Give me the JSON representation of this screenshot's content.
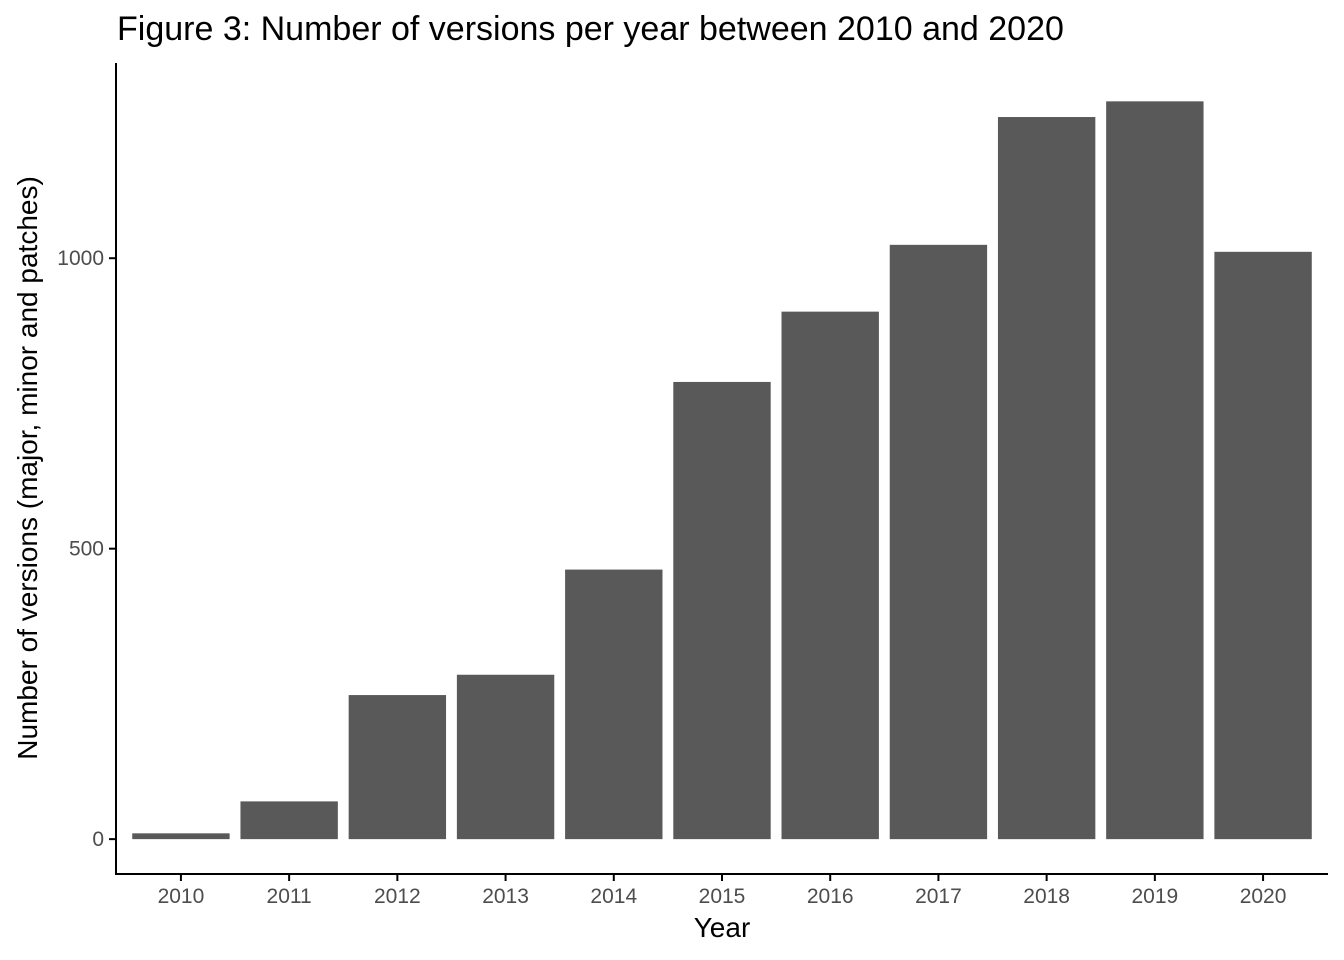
{
  "colors": {
    "bar": "#595959",
    "axis": "#000000",
    "tick_text": "#4d4d4d",
    "background": "#ffffff"
  },
  "chart_data": {
    "type": "bar",
    "title": "Figure 3: Number of versions per year between 2010 and 2020",
    "xlabel": "Year",
    "ylabel": "Number of versions (major, minor and patches)",
    "categories": [
      "2010",
      "2011",
      "2012",
      "2013",
      "2014",
      "2015",
      "2016",
      "2017",
      "2018",
      "2019",
      "2020"
    ],
    "values": [
      10,
      65,
      248,
      283,
      464,
      787,
      908,
      1023,
      1243,
      1270,
      1011
    ],
    "ylim": [
      -60,
      1336
    ],
    "yticks": [
      0,
      500,
      1000
    ],
    "ytick_labels": [
      "0",
      "500",
      "1000"
    ],
    "grid": false,
    "legend": "none"
  }
}
